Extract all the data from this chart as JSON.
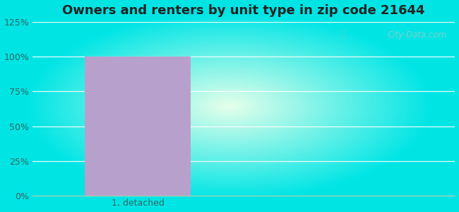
{
  "title": "Owners and renters by unit type in zip code 21644",
  "categories": [
    "1, detached"
  ],
  "values": [
    100
  ],
  "bar_color": "#b8a0cc",
  "ylim": [
    0,
    125
  ],
  "yticks": [
    0,
    25,
    50,
    75,
    100,
    125
  ],
  "ytick_labels": [
    "0%",
    "25%",
    "50%",
    "75%",
    "100%",
    "125%"
  ],
  "title_fontsize": 13,
  "tick_fontsize": 9,
  "watermark_text": "City-Data.com",
  "cyan_color": [
    0,
    0.898,
    0.898
  ],
  "inner_color": [
    0.9,
    1.0,
    0.92
  ],
  "bar_width": 0.5,
  "xlim": [
    -0.5,
    1.5
  ],
  "grid_color": "#ccddcc",
  "grid_alpha": 0.8
}
